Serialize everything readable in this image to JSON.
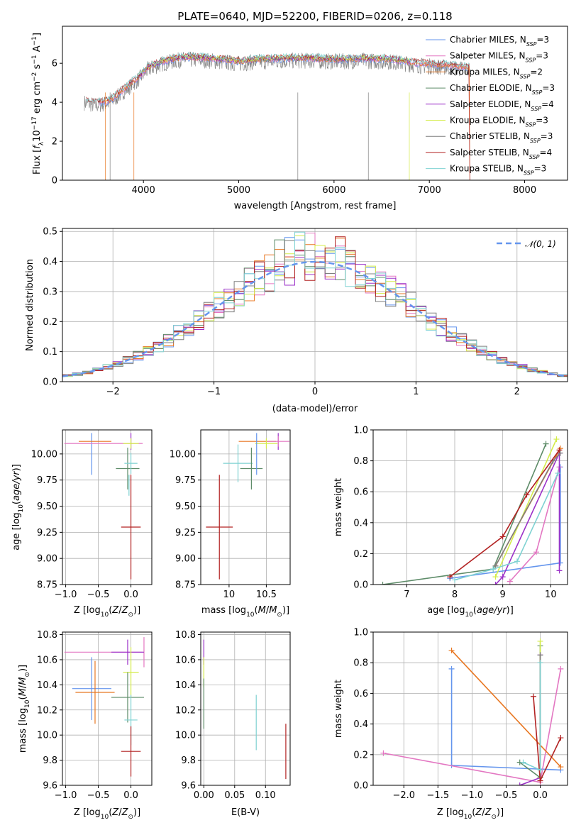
{
  "colors": {
    "chabrier_miles": "#6495ed",
    "salpeter_miles": "#e377c2",
    "kroupa_miles": "#e87722",
    "chabrier_elodie": "#5e8c69",
    "salpeter_elodie": "#9b30c8",
    "kroupa_elodie": "#d4ec4a",
    "chabrier_stelib": "#7f7f7f",
    "salpeter_stelib": "#b22222",
    "kroupa_stelib": "#7fd2d2",
    "normal_curve": "#6495ed"
  },
  "chart_data": [
    {
      "id": "spectrum",
      "type": "line",
      "title": "PLATE=0640, MJD=52200, FIBERID=0206, z=0.118",
      "xlabel": "wavelength [Angstrom, rest frame]",
      "ylabel": "Flux [f_λ10^-17 erg cm^-2 s^-1 A^-1]",
      "xlim": [
        3150,
        8450
      ],
      "ylim": [
        0,
        7.9
      ],
      "xticks": [
        4000,
        5000,
        6000,
        7000,
        8000
      ],
      "yticks": [
        0,
        2,
        4,
        6
      ],
      "grid": false,
      "legend_position": "right",
      "legend": [
        {
          "prefix": "Chabrier MILES, N",
          "sub": "SSP",
          "suffix": "=3",
          "key": "chabrier_miles"
        },
        {
          "prefix": "Salpeter MILES, N",
          "sub": "SSP",
          "suffix": "=3",
          "key": "salpeter_miles"
        },
        {
          "prefix": "Kroupa MILES, N",
          "sub": "SSP",
          "suffix": "=2",
          "key": "kroupa_miles"
        },
        {
          "prefix": "Chabrier ELODIE, N",
          "sub": "SSP",
          "suffix": "=3",
          "key": "chabrier_elodie"
        },
        {
          "prefix": "Salpeter ELODIE, N",
          "sub": "SSP",
          "suffix": "=4",
          "key": "salpeter_elodie"
        },
        {
          "prefix": "Kroupa ELODIE, N",
          "sub": "SSP",
          "suffix": "=3",
          "key": "kroupa_elodie"
        },
        {
          "prefix": "Chabrier STELIB, N",
          "sub": "SSP",
          "suffix": "=3",
          "key": "chabrier_stelib"
        },
        {
          "prefix": "Salpeter STELIB, N",
          "sub": "SSP",
          "suffix": "=4",
          "key": "salpeter_stelib"
        },
        {
          "prefix": "Kroupa STELIB, N",
          "sub": "SSP",
          "suffix": "=3",
          "key": "kroupa_stelib"
        }
      ],
      "continuum": {
        "x": [
          3380,
          3500,
          3650,
          3800,
          3950,
          4050,
          4200,
          4400,
          4600,
          4800,
          5000,
          5200,
          5500,
          5800,
          6000,
          6300,
          6600,
          6900,
          7200,
          7400
        ],
        "y": [
          4.1,
          3.95,
          4.1,
          4.7,
          5.3,
          5.8,
          6.1,
          6.3,
          6.3,
          6.2,
          6.1,
          6.2,
          6.25,
          6.25,
          6.2,
          6.25,
          6.2,
          6.0,
          5.9,
          5.8
        ]
      }
    },
    {
      "id": "residuals",
      "type": "step",
      "xlabel": "(data-model)/error",
      "ylabel": "Normed distribution",
      "xlim": [
        -2.5,
        2.5
      ],
      "ylim": [
        0,
        0.51
      ],
      "xticks": [
        -2,
        -1,
        0,
        1,
        2
      ],
      "yticks": [
        0.0,
        0.1,
        0.2,
        0.3,
        0.4,
        0.5
      ],
      "grid": true,
      "legend_position": "top-right",
      "normal_label": "𝒩(0, 1)",
      "bin_width": 0.1
    },
    {
      "id": "age_vs_Z",
      "type": "errorbar",
      "xlabel": "Z [log10(Z/Z⊙)]",
      "ylabel": "age  [log10(age/yr)]",
      "xlim": [
        -1.05,
        0.32
      ],
      "ylim": [
        8.75,
        10.23
      ],
      "xticks": [
        -1.0,
        -0.5,
        0.0
      ],
      "xticklabels": [
        "−1.0",
        "−0.5",
        "0.0"
      ],
      "yticks": [
        8.75,
        9.0,
        9.25,
        9.5,
        9.75,
        10.0
      ],
      "yticklabels": [
        "8.75",
        "9.00",
        "9.25",
        "9.50",
        "9.75",
        "10.00"
      ],
      "grid": true,
      "points": [
        {
          "key": "chabrier_miles",
          "x": -0.6,
          "xerr": 0.0,
          "y": 10.0,
          "yerr": 0.2
        },
        {
          "key": "salpeter_miles",
          "x": -0.42,
          "xerr": 0.6,
          "y": 10.1,
          "yerr": 0.0
        },
        {
          "key": "kroupa_miles",
          "x": -0.55,
          "xerr": 0.25,
          "y": 10.12,
          "yerr": 0.0
        },
        {
          "key": "chabrier_elodie",
          "x": -0.05,
          "xerr": 0.18,
          "y": 9.86,
          "yerr": 0.2
        },
        {
          "key": "salpeter_elodie",
          "x": 0.0,
          "xerr": 0.0,
          "y": 10.12,
          "yerr": 0.08
        },
        {
          "key": "kroupa_elodie",
          "x": 0.0,
          "xerr": 0.12,
          "y": 10.1,
          "yerr": 0.05
        },
        {
          "key": "kroupa_stelib",
          "x": 0.0,
          "xerr": 0.1,
          "y": 9.91,
          "yerr": 0.1
        },
        {
          "key": "kroupa_stelib",
          "x": -0.03,
          "xerr": 0.0,
          "y": 9.7,
          "yerr": 0.1
        },
        {
          "key": "salpeter_stelib",
          "x": 0.0,
          "xerr": 0.15,
          "y": 9.3,
          "yerr": 0.5
        }
      ]
    },
    {
      "id": "age_vs_mass",
      "type": "errorbar",
      "xlabel": "mass [log10(M/M⊙)]",
      "xlim": [
        9.62,
        10.82
      ],
      "ylim": [
        8.75,
        10.23
      ],
      "xticks": [
        10.0,
        10.5
      ],
      "xticklabels": [
        "10",
        "10.5"
      ],
      "yticks": [
        8.75,
        9.0,
        9.25,
        9.5,
        9.75,
        10.0
      ],
      "yticklabels": [
        "8.75",
        "9.00",
        "9.25",
        "9.50",
        "9.75",
        "10.00"
      ],
      "grid": true,
      "points": [
        {
          "key": "salpeter_elodie",
          "x": 10.66,
          "xerr": 0.0,
          "y": 10.12,
          "yerr": 0.08
        },
        {
          "key": "kroupa_miles",
          "x": 10.38,
          "xerr": 0.25,
          "y": 10.12,
          "yerr": 0.0
        },
        {
          "key": "kroupa_elodie",
          "x": 10.5,
          "xerr": 0.15,
          "y": 10.1,
          "yerr": 0.05
        },
        {
          "key": "salpeter_miles",
          "x": 10.66,
          "xerr": 0.15,
          "y": 10.12,
          "yerr": 0.05
        },
        {
          "key": "kroupa_stelib",
          "x": 10.12,
          "xerr": 0.2,
          "y": 9.91,
          "yerr": 0.18
        },
        {
          "key": "chabrier_elodie",
          "x": 10.3,
          "xerr": 0.15,
          "y": 9.86,
          "yerr": 0.2
        },
        {
          "key": "chabrier_miles",
          "x": 10.37,
          "xerr": 0.0,
          "y": 10.0,
          "yerr": 0.2
        },
        {
          "key": "salpeter_stelib",
          "x": 9.87,
          "xerr": 0.18,
          "y": 9.3,
          "yerr": 0.5
        }
      ]
    },
    {
      "id": "mass_weight_vs_age",
      "type": "line",
      "xlabel": "age  [log10(age/yr)]",
      "ylabel": "mass weight",
      "xlim": [
        6.3,
        10.35
      ],
      "ylim": [
        0.0,
        1.0
      ],
      "xticks": [
        7,
        8,
        9,
        10
      ],
      "yticks": [
        0.0,
        0.2,
        0.4,
        0.6,
        0.8,
        1.0
      ],
      "grid": true,
      "series": [
        {
          "key": "chabrier_miles",
          "x": [
            7.9,
            10.2,
            10.2
          ],
          "y": [
            0.04,
            0.14,
            0.76
          ]
        },
        {
          "key": "salpeter_miles",
          "x": [
            9.15,
            9.7,
            10.18
          ],
          "y": [
            0.02,
            0.21,
            0.76
          ]
        },
        {
          "key": "kroupa_miles",
          "x": [
            8.85,
            10.2
          ],
          "y": [
            0.12,
            0.88
          ]
        },
        {
          "key": "chabrier_elodie",
          "x": [
            6.5,
            8.8,
            9.9
          ],
          "y": [
            0.0,
            0.1,
            0.91
          ]
        },
        {
          "key": "salpeter_elodie",
          "x": [
            8.85,
            9.0,
            10.18,
            10.18
          ],
          "y": [
            0.0,
            0.05,
            0.85,
            0.09
          ]
        },
        {
          "key": "kroupa_elodie",
          "x": [
            8.85,
            10.12
          ],
          "y": [
            0.05,
            0.94
          ]
        },
        {
          "key": "chabrier_stelib",
          "x": [
            8.85,
            10.05,
            10.2
          ],
          "y": [
            0.12,
            0.8,
            0.85
          ]
        },
        {
          "key": "salpeter_stelib",
          "x": [
            7.9,
            9.0,
            9.5,
            10.18
          ],
          "y": [
            0.05,
            0.31,
            0.58,
            0.87
          ]
        },
        {
          "key": "kroupa_stelib",
          "x": [
            8.0,
            8.8,
            9.3,
            10.15
          ],
          "y": [
            0.03,
            0.1,
            0.15,
            0.72
          ]
        }
      ]
    },
    {
      "id": "mass_vs_Z",
      "type": "errorbar",
      "xlabel": "Z [log10(Z/Z⊙)]",
      "ylabel": "mass [log10(M/M⊙)]",
      "xlim": [
        -1.05,
        0.32
      ],
      "ylim": [
        9.6,
        10.82
      ],
      "xticks": [
        -1.0,
        -0.5,
        0.0
      ],
      "xticklabels": [
        "−1.0",
        "−0.5",
        "0.0"
      ],
      "yticks": [
        9.6,
        9.8,
        10.0,
        10.2,
        10.4,
        10.6,
        10.8
      ],
      "yticklabels": [
        "9.6",
        "9.8",
        "10.0",
        "10.2",
        "10.4",
        "10.6",
        "10.8"
      ],
      "grid": true,
      "points": [
        {
          "key": "chabrier_miles",
          "x": -0.6,
          "xerr": 0.3,
          "y": 10.37,
          "yerr": 0.25
        },
        {
          "key": "kroupa_miles",
          "x": -0.55,
          "xerr": 0.3,
          "y": 10.34,
          "yerr": 0.25
        },
        {
          "key": "salpeter_miles",
          "x": -0.42,
          "xerr": 0.6,
          "y": 10.66,
          "yerr": 0.0
        },
        {
          "key": "salpeter_miles",
          "x": 0.2,
          "xerr": 0.0,
          "y": 10.66,
          "yerr": 0.12
        },
        {
          "key": "salpeter_elodie",
          "x": -0.05,
          "xerr": 0.25,
          "y": 10.66,
          "yerr": 0.1
        },
        {
          "key": "kroupa_elodie",
          "x": 0.0,
          "xerr": 0.12,
          "y": 10.5,
          "yerr": 0.2
        },
        {
          "key": "chabrier_elodie",
          "x": -0.05,
          "xerr": 0.25,
          "y": 10.3,
          "yerr": 0.2
        },
        {
          "key": "kroupa_stelib",
          "x": 0.0,
          "xerr": 0.1,
          "y": 10.12,
          "yerr": 0.2
        },
        {
          "key": "salpeter_stelib",
          "x": 0.0,
          "xerr": 0.15,
          "y": 9.87,
          "yerr": 0.2
        }
      ]
    },
    {
      "id": "mass_vs_EBV",
      "type": "errorbar",
      "xlabel": "E(B-V)",
      "xlim": [
        -0.005,
        0.14
      ],
      "ylim": [
        9.6,
        10.82
      ],
      "xticks": [
        0.0,
        0.05,
        0.1
      ],
      "xticklabels": [
        "0.00",
        "0.05",
        "0.10"
      ],
      "yticks": [
        9.6,
        9.8,
        10.0,
        10.2,
        10.4,
        10.6,
        10.8
      ],
      "yticklabels": [
        "9.6",
        "9.8",
        "10.0",
        "10.2",
        "10.4",
        "10.6",
        "10.8"
      ],
      "grid": true,
      "points": [
        {
          "key": "salpeter_elodie",
          "x": 0.0,
          "xerr": 0.0,
          "y": 10.66,
          "yerr": 0.1
        },
        {
          "key": "kroupa_elodie",
          "x": 0.0,
          "xerr": 0.0,
          "y": 10.5,
          "yerr": 0.12
        },
        {
          "key": "chabrier_elodie",
          "x": 0.0,
          "xerr": 0.0,
          "y": 10.25,
          "yerr": 0.2
        },
        {
          "key": "kroupa_stelib",
          "x": 0.085,
          "xerr": 0.0,
          "y": 10.1,
          "yerr": 0.22
        },
        {
          "key": "salpeter_stelib",
          "x": 0.133,
          "xerr": 0.0,
          "y": 9.87,
          "yerr": 0.22
        }
      ]
    },
    {
      "id": "mass_weight_vs_Z",
      "type": "line",
      "xlabel": "Z [log10(Z/Z⊙)]",
      "ylabel": "mass weight",
      "xlim": [
        -2.45,
        0.4
      ],
      "ylim": [
        0.0,
        1.0
      ],
      "xticks": [
        -2.0,
        -1.5,
        -1.0,
        -0.5,
        0.0
      ],
      "xticklabels": [
        "−2.0",
        "−1.5",
        "−1.0",
        "−0.5",
        "0.0"
      ],
      "yticks": [
        0.0,
        0.2,
        0.4,
        0.6,
        0.8,
        1.0
      ],
      "grid": true,
      "series": [
        {
          "key": "chabrier_miles",
          "x": [
            -1.3,
            -1.3,
            0.3
          ],
          "y": [
            0.76,
            0.13,
            0.1
          ]
        },
        {
          "key": "salpeter_miles",
          "x": [
            -2.3,
            0.0,
            0.3
          ],
          "y": [
            0.21,
            0.02,
            0.76
          ]
        },
        {
          "key": "kroupa_miles",
          "x": [
            -1.3,
            0.3
          ],
          "y": [
            0.88,
            0.12
          ]
        },
        {
          "key": "chabrier_elodie",
          "x": [
            -0.3,
            0.0,
            0.0
          ],
          "y": [
            0.15,
            0.05,
            0.91
          ]
        },
        {
          "key": "salpeter_elodie",
          "x": [
            -0.3,
            0.0,
            0.0
          ],
          "y": [
            0.0,
            0.05,
            0.85
          ]
        },
        {
          "key": "kroupa_elodie",
          "x": [
            0.0,
            0.0
          ],
          "y": [
            0.05,
            0.94
          ]
        },
        {
          "key": "chabrier_stelib",
          "x": [
            0.0,
            0.0
          ],
          "y": [
            0.05,
            0.85
          ]
        },
        {
          "key": "salpeter_stelib",
          "x": [
            -0.1,
            0.0,
            0.3
          ],
          "y": [
            0.58,
            0.03,
            0.31
          ]
        },
        {
          "key": "kroupa_stelib",
          "x": [
            -0.25,
            0.0,
            0.0
          ],
          "y": [
            0.15,
            0.1,
            0.8
          ]
        }
      ]
    }
  ]
}
